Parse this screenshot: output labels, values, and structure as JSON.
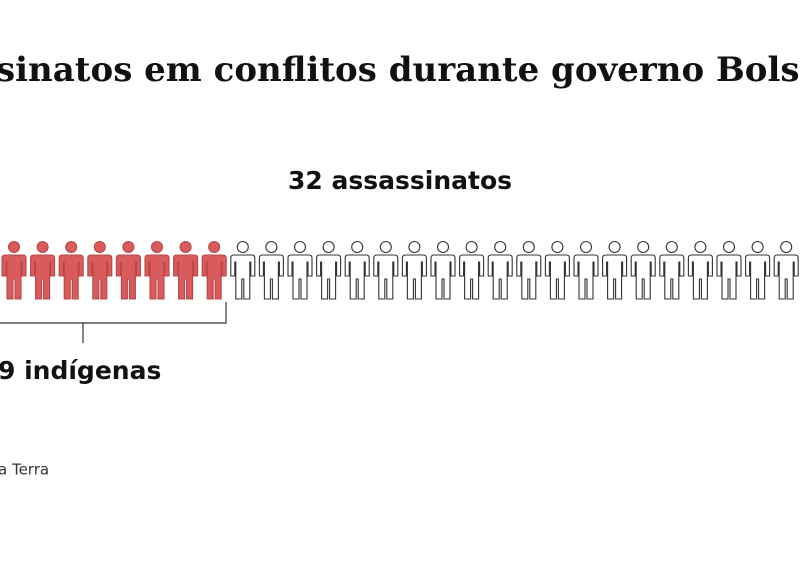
{
  "chart_data": {
    "type": "pictogram",
    "title": "sinatos em conflitos durante governo Bols",
    "total": 32,
    "total_label": "32 assassinatos",
    "highlighted": 9,
    "highlighted_label": "9 indígenas",
    "highlight_color": "#d95b5b",
    "color": "#ffffff",
    "source": "a Terra"
  }
}
